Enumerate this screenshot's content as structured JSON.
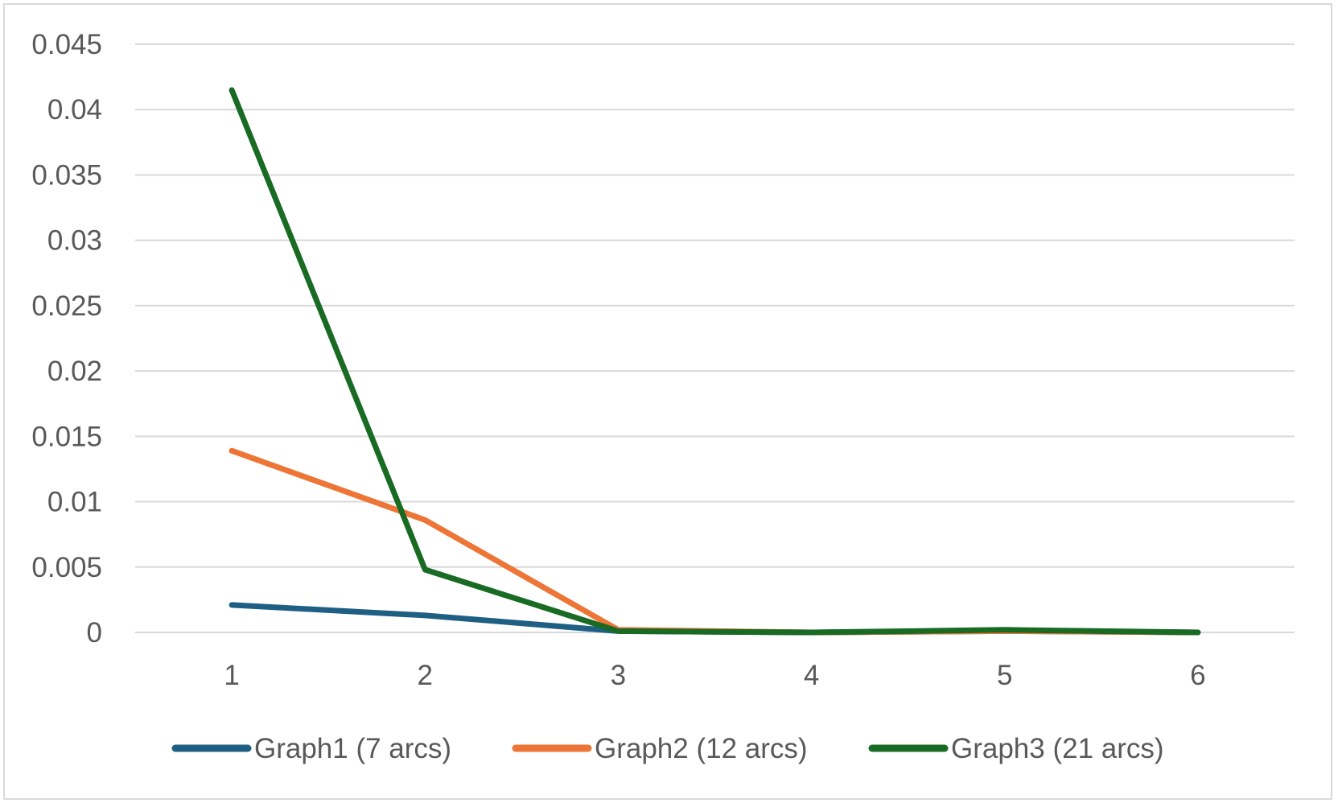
{
  "chart_data": {
    "type": "line",
    "title": "",
    "xlabel": "",
    "ylabel": "",
    "x": [
      1,
      2,
      3,
      4,
      5,
      6
    ],
    "x_tick_labels": [
      "1",
      "2",
      "3",
      "4",
      "5",
      "6"
    ],
    "ylim": [
      0,
      0.045
    ],
    "y_ticks": [
      0,
      0.005,
      0.01,
      0.015,
      0.02,
      0.025,
      0.03,
      0.035,
      0.04,
      0.045
    ],
    "y_tick_labels": [
      "0",
      "0.005",
      "0.01",
      "0.015",
      "0.02",
      "0.025",
      "0.03",
      "0.035",
      "0.04",
      "0.045"
    ],
    "grid": true,
    "legend_position": "bottom",
    "series": [
      {
        "name": "Graph1 (7 arcs)",
        "color": "#1f5f84",
        "values": [
          0.0021,
          0.0013,
          0.0001,
          0.0,
          0.0001,
          0.0
        ]
      },
      {
        "name": "Graph2 (12 arcs)",
        "color": "#ed7536",
        "values": [
          0.0139,
          0.0086,
          0.0002,
          0.0,
          0.0001,
          0.0
        ]
      },
      {
        "name": "Graph3 (21 arcs)",
        "color": "#196b24",
        "values": [
          0.0415,
          0.0048,
          0.0001,
          0.0,
          0.0002,
          0.0
        ]
      }
    ]
  }
}
